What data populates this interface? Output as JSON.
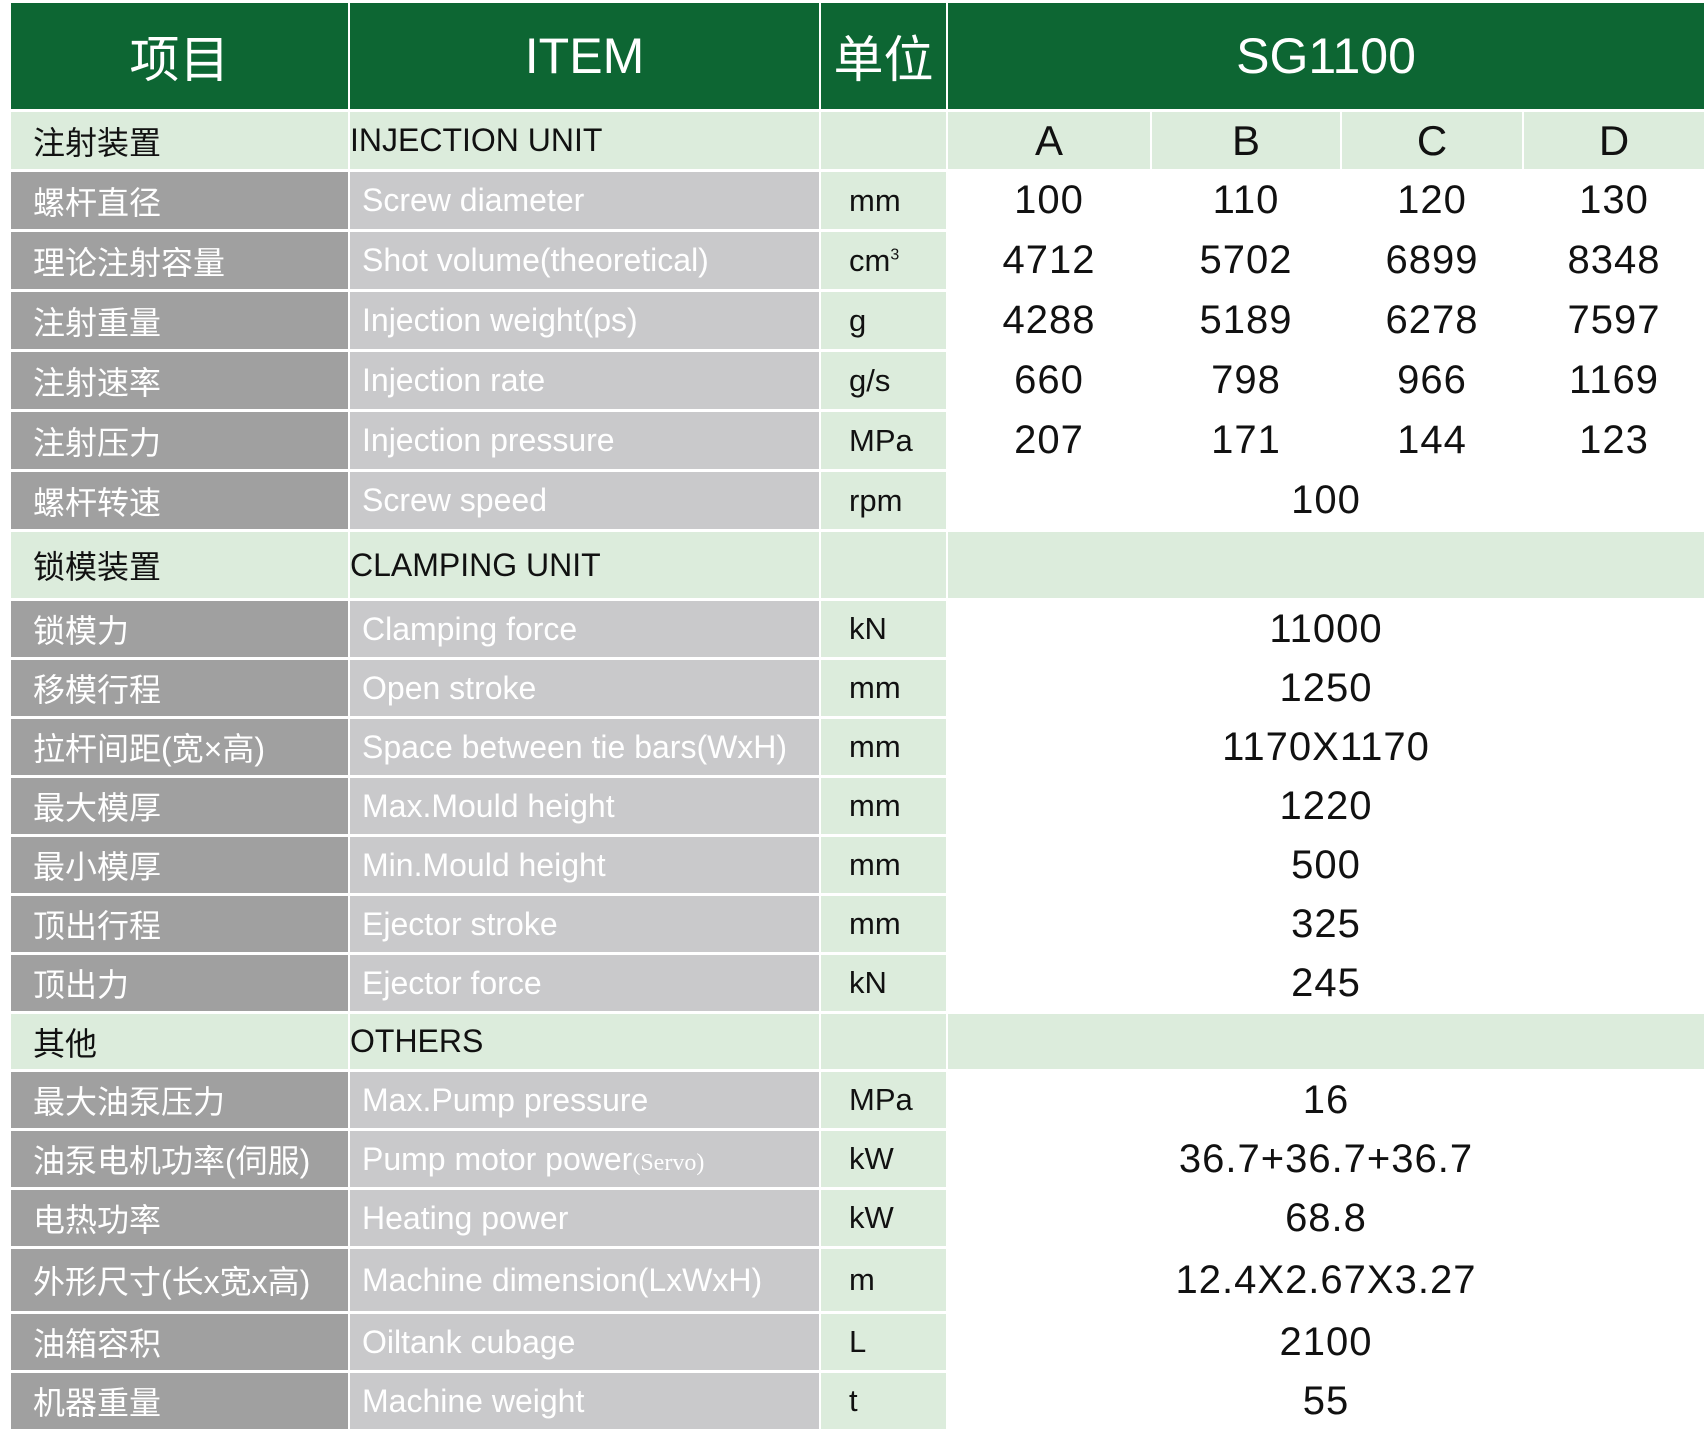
{
  "header": {
    "col_zh": "项目",
    "col_en": "ITEM",
    "col_unit": "单位",
    "model": "SG1100"
  },
  "colors": {
    "header": "#0d6633",
    "section": "#dcecdc",
    "zh_col": "#a0a0a0",
    "en_col": "#c9c9cb"
  },
  "variants": [
    "A",
    "B",
    "C",
    "D"
  ],
  "sections": [
    {
      "zh": "注射装置",
      "en": "INJECTION UNIT",
      "show_variants": true,
      "rows": [
        {
          "zh": "螺杆直径",
          "en": "Screw diameter",
          "unit": "mm",
          "values": [
            "100",
            "110",
            "120",
            "130"
          ]
        },
        {
          "zh": "理论注射容量",
          "en": "Shot volume(theoretical)",
          "unit": "cm",
          "unit_sup": "3",
          "values": [
            "4712",
            "5702",
            "6899",
            "8348"
          ]
        },
        {
          "zh": "注射重量",
          "en": "Injection weight(ps)",
          "unit": "g",
          "values": [
            "4288",
            "5189",
            "6278",
            "7597"
          ]
        },
        {
          "zh": "注射速率",
          "en": "Injection rate",
          "unit": "g/s",
          "values": [
            "660",
            "798",
            "966",
            "1169"
          ]
        },
        {
          "zh": "注射压力",
          "en": "Injection pressure",
          "unit": "MPa",
          "values": [
            "207",
            "171",
            "144",
            "123"
          ]
        },
        {
          "zh": "螺杆转速",
          "en": "Screw speed",
          "unit": "rpm",
          "value": "100"
        }
      ]
    },
    {
      "zh": "锁模装置",
      "en": "CLAMPING UNIT",
      "rows": [
        {
          "zh": "锁模力",
          "en": "Clamping force",
          "unit": "kN",
          "value": "11000"
        },
        {
          "zh": "移模行程",
          "en": "Open stroke",
          "unit": "mm",
          "value": "1250"
        },
        {
          "zh": "拉杆间距(宽×高)",
          "en": "Space between tie bars(WxH)",
          "unit": "mm",
          "value": "1170X1170"
        },
        {
          "zh": "最大模厚",
          "en": "Max.Mould height",
          "unit": "mm",
          "value": "1220"
        },
        {
          "zh": "最小模厚",
          "en": "Min.Mould height",
          "unit": "mm",
          "value": "500"
        },
        {
          "zh": "顶出行程",
          "en": "Ejector stroke",
          "unit": "mm",
          "value": "325"
        },
        {
          "zh": "顶出力",
          "en": "Ejector force",
          "unit": "kN",
          "value": "245"
        }
      ]
    },
    {
      "zh": "其他",
      "en": "OTHERS",
      "rows": [
        {
          "zh": "最大油泵压力",
          "en": "Max.Pump pressure",
          "unit": "MPa",
          "value": "16"
        },
        {
          "zh": "油泵电机功率(伺服)",
          "en": "Pump motor power",
          "en_small": "(Servo)",
          "unit": "kW",
          "value": "36.7+36.7+36.7"
        },
        {
          "zh": "电热功率",
          "en": "Heating power",
          "unit": "kW",
          "value": "68.8"
        },
        {
          "zh": "外形尺寸(长x宽x高)",
          "en": "Machine dimension(LxWxH)",
          "unit": "m",
          "value": "12.4X2.67X3.27"
        },
        {
          "zh": "油箱容积",
          "en": "Oiltank cubage",
          "unit": "L",
          "value": "2100"
        },
        {
          "zh": "机器重量",
          "en": "Machine weight",
          "unit": "t",
          "value": "55"
        }
      ]
    }
  ]
}
